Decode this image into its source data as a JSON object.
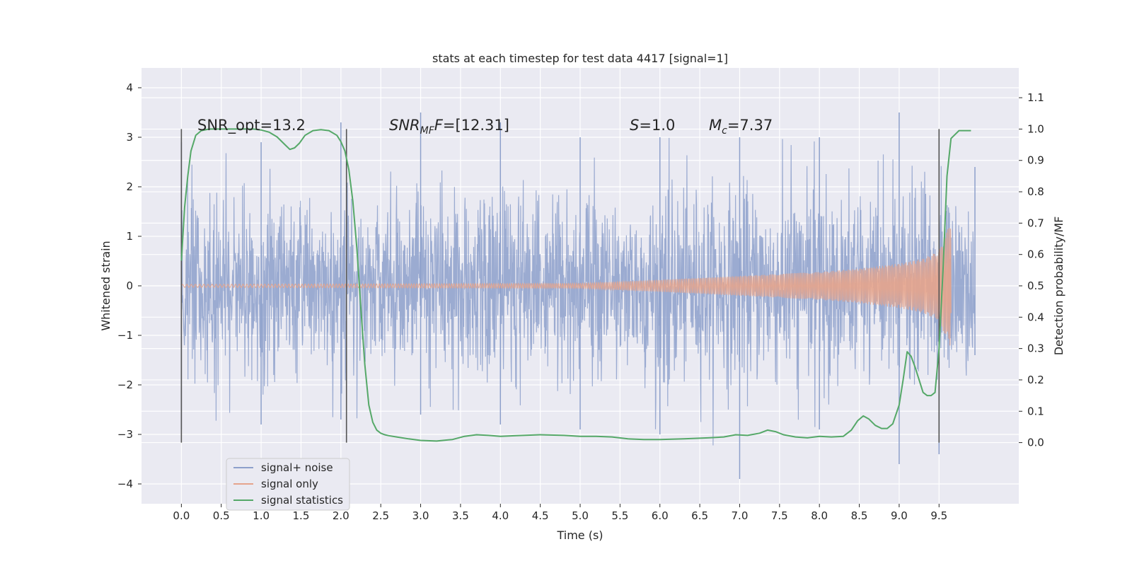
{
  "chart_data": {
    "type": "line",
    "title": "stats at each timestep for test data 4417 [signal=1]",
    "xlabel": "Time (s)",
    "ylabel_left": "Whitened strain",
    "ylabel_right": "Detection probability/MF",
    "xlim": [
      -0.5,
      10.5
    ],
    "ylim_left": [
      -4.4,
      4.4
    ],
    "ylim_right": [
      -0.195,
      1.195
    ],
    "x_ticks": [
      "0.0",
      "0.5",
      "1.0",
      "1.5",
      "2.0",
      "2.5",
      "3.0",
      "3.5",
      "4.0",
      "4.5",
      "5.0",
      "5.5",
      "6.0",
      "6.5",
      "7.0",
      "7.5",
      "8.0",
      "8.5",
      "9.0",
      "9.5"
    ],
    "x_tick_values": [
      0.0,
      0.5,
      1.0,
      1.5,
      2.0,
      2.5,
      3.0,
      3.5,
      4.0,
      4.5,
      5.0,
      5.5,
      6.0,
      6.5,
      7.0,
      7.5,
      8.0,
      8.5,
      9.0,
      9.5
    ],
    "y_left_ticks": [
      "4",
      "3",
      "2",
      "1",
      "0",
      "−1",
      "−2",
      "−3",
      "−4"
    ],
    "y_left_tick_values": [
      4,
      3,
      2,
      1,
      0,
      -1,
      -2,
      -3,
      -4
    ],
    "y_right_ticks": [
      "1.1",
      "1.0",
      "0.9",
      "0.8",
      "0.7",
      "0.6",
      "0.5",
      "0.4",
      "0.3",
      "0.2",
      "0.1",
      "0.0"
    ],
    "y_right_tick_values": [
      1.1,
      1.0,
      0.9,
      0.8,
      0.7,
      0.6,
      0.5,
      0.4,
      0.3,
      0.2,
      0.1,
      0.0
    ],
    "grid": true,
    "legend_position": "lower-left",
    "annotations": {
      "snr_opt": "SNR_opt=13.2",
      "snr_mf_main": "SNR",
      "snr_mf_sub": "MF",
      "snr_mf_italic": "F",
      "snr_mf_value": "=[12.31]",
      "s_symbol": "S",
      "s_value": "=1.0",
      "mc_symbol": "M",
      "mc_sub": "c",
      "mc_value": "=7.37"
    },
    "vertical_markers_x": [
      0.0,
      2.07,
      9.5
    ],
    "series": [
      {
        "name": "signal+ noise",
        "color": "#8da0cb",
        "axis": "left",
        "style": "dense noise band",
        "x_range": [
          0.0,
          9.95
        ],
        "envelope_x": [
          0.0,
          1.0,
          2.0,
          3.0,
          4.0,
          5.0,
          6.0,
          7.0,
          8.0,
          9.0,
          9.5,
          9.95
        ],
        "envelope_max": [
          2.9,
          2.9,
          3.3,
          3.5,
          3.3,
          3.0,
          3.0,
          3.0,
          3.0,
          3.5,
          3.0,
          2.4
        ],
        "envelope_min": [
          -2.9,
          -2.8,
          -2.7,
          -2.6,
          -2.8,
          -2.9,
          -3.0,
          -3.9,
          -2.9,
          -3.6,
          -3.4,
          -1.4
        ],
        "noise_std": 0.95
      },
      {
        "name": "signal only",
        "color": "#e5a48c",
        "axis": "left",
        "style": "chirp",
        "x_range": [
          0.0,
          9.65
        ],
        "envelope_x": [
          0.0,
          5.0,
          6.0,
          7.0,
          8.0,
          8.5,
          9.0,
          9.3,
          9.5,
          9.6,
          9.65
        ],
        "envelope_amp": [
          0.03,
          0.05,
          0.12,
          0.2,
          0.28,
          0.35,
          0.45,
          0.55,
          0.7,
          1.1,
          1.3
        ]
      },
      {
        "name": "signal statistics",
        "color": "#55a868",
        "axis": "right",
        "x": [
          0.0,
          0.04,
          0.08,
          0.12,
          0.18,
          0.25,
          0.35,
          0.5,
          0.7,
          0.9,
          1.0,
          1.1,
          1.2,
          1.3,
          1.36,
          1.42,
          1.48,
          1.55,
          1.65,
          1.75,
          1.85,
          1.95,
          2.0,
          2.05,
          2.1,
          2.15,
          2.2,
          2.25,
          2.3,
          2.35,
          2.4,
          2.45,
          2.5,
          2.55,
          2.6,
          2.7,
          2.85,
          3.0,
          3.2,
          3.4,
          3.55,
          3.7,
          3.85,
          4.0,
          4.2,
          4.5,
          4.8,
          5.0,
          5.2,
          5.4,
          5.6,
          5.8,
          6.0,
          6.3,
          6.6,
          6.8,
          6.95,
          7.1,
          7.25,
          7.35,
          7.45,
          7.55,
          7.7,
          7.85,
          8.0,
          8.15,
          8.3,
          8.4,
          8.48,
          8.55,
          8.62,
          8.7,
          8.78,
          8.85,
          8.92,
          9.0,
          9.05,
          9.1,
          9.15,
          9.2,
          9.25,
          9.3,
          9.35,
          9.4,
          9.45,
          9.5,
          9.55,
          9.6,
          9.65,
          9.75,
          9.9
        ],
        "y": [
          0.58,
          0.75,
          0.85,
          0.93,
          0.98,
          0.995,
          1.0,
          1.0,
          1.0,
          1.0,
          0.997,
          0.99,
          0.975,
          0.95,
          0.935,
          0.94,
          0.955,
          0.98,
          0.995,
          0.998,
          0.995,
          0.98,
          0.96,
          0.93,
          0.87,
          0.77,
          0.62,
          0.43,
          0.25,
          0.12,
          0.065,
          0.04,
          0.03,
          0.025,
          0.022,
          0.018,
          0.012,
          0.007,
          0.005,
          0.01,
          0.02,
          0.025,
          0.023,
          0.02,
          0.022,
          0.025,
          0.023,
          0.02,
          0.02,
          0.018,
          0.012,
          0.01,
          0.01,
          0.012,
          0.015,
          0.018,
          0.025,
          0.023,
          0.03,
          0.04,
          0.035,
          0.025,
          0.018,
          0.015,
          0.02,
          0.018,
          0.02,
          0.04,
          0.07,
          0.085,
          0.075,
          0.055,
          0.045,
          0.045,
          0.06,
          0.12,
          0.2,
          0.29,
          0.275,
          0.24,
          0.2,
          0.16,
          0.15,
          0.15,
          0.16,
          0.3,
          0.55,
          0.85,
          0.97,
          0.995,
          0.995
        ]
      }
    ]
  }
}
